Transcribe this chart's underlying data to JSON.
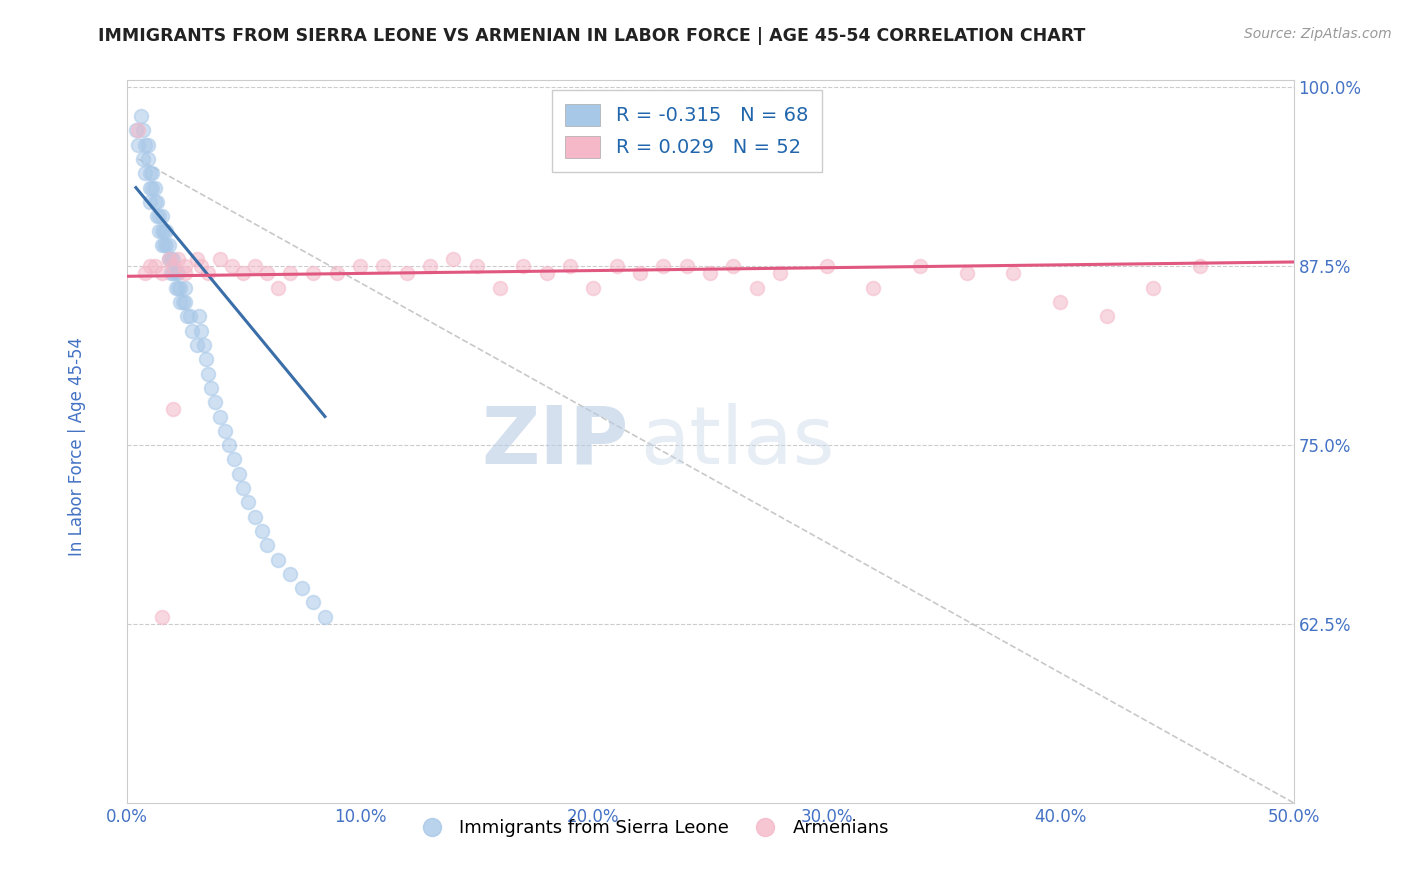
{
  "title": "IMMIGRANTS FROM SIERRA LEONE VS ARMENIAN IN LABOR FORCE | AGE 45-54 CORRELATION CHART",
  "source": "Source: ZipAtlas.com",
  "ylabel": "In Labor Force | Age 45-54",
  "legend_bottom": [
    "Immigrants from Sierra Leone",
    "Armenians"
  ],
  "blue_R": -0.315,
  "blue_N": 68,
  "pink_R": 0.029,
  "pink_N": 52,
  "blue_color": "#a8c8e8",
  "pink_color": "#f4b8c8",
  "blue_line_color": "#3a6ea8",
  "pink_line_color": "#e05880",
  "title_color": "#222222",
  "source_color": "#999999",
  "RN_color": "#2166ac",
  "axis_label_color": "#4472c4",
  "xmin": 0.0,
  "xmax": 0.5,
  "ymin": 0.5,
  "ymax": 1.005,
  "yticks": [
    0.625,
    0.75,
    0.875,
    1.0
  ],
  "ytick_labels": [
    "62.5%",
    "75.0%",
    "87.5%",
    "100.0%"
  ],
  "xticks": [
    0.0,
    0.1,
    0.2,
    0.3,
    0.4,
    0.5
  ],
  "xtick_labels": [
    "0.0%",
    "10.0%",
    "20.0%",
    "30.0%",
    "40.0%",
    "50.0%"
  ],
  "blue_scatter_x": [
    0.004,
    0.005,
    0.006,
    0.007,
    0.007,
    0.008,
    0.008,
    0.009,
    0.009,
    0.01,
    0.01,
    0.01,
    0.011,
    0.011,
    0.012,
    0.012,
    0.013,
    0.013,
    0.014,
    0.014,
    0.015,
    0.015,
    0.015,
    0.016,
    0.016,
    0.017,
    0.017,
    0.018,
    0.018,
    0.019,
    0.019,
    0.02,
    0.02,
    0.021,
    0.021,
    0.022,
    0.022,
    0.023,
    0.023,
    0.024,
    0.025,
    0.025,
    0.026,
    0.027,
    0.028,
    0.03,
    0.031,
    0.032,
    0.033,
    0.034,
    0.035,
    0.036,
    0.038,
    0.04,
    0.042,
    0.044,
    0.046,
    0.048,
    0.05,
    0.052,
    0.055,
    0.058,
    0.06,
    0.065,
    0.07,
    0.075,
    0.08,
    0.085
  ],
  "blue_scatter_y": [
    0.97,
    0.96,
    0.98,
    0.97,
    0.95,
    0.96,
    0.94,
    0.96,
    0.95,
    0.94,
    0.93,
    0.92,
    0.94,
    0.93,
    0.93,
    0.92,
    0.92,
    0.91,
    0.91,
    0.9,
    0.91,
    0.9,
    0.89,
    0.9,
    0.89,
    0.9,
    0.89,
    0.89,
    0.88,
    0.88,
    0.87,
    0.88,
    0.87,
    0.87,
    0.86,
    0.87,
    0.86,
    0.86,
    0.85,
    0.85,
    0.86,
    0.85,
    0.84,
    0.84,
    0.83,
    0.82,
    0.84,
    0.83,
    0.82,
    0.81,
    0.8,
    0.79,
    0.78,
    0.77,
    0.76,
    0.75,
    0.74,
    0.73,
    0.72,
    0.71,
    0.7,
    0.69,
    0.68,
    0.67,
    0.66,
    0.65,
    0.64,
    0.63
  ],
  "pink_scatter_x": [
    0.005,
    0.008,
    0.01,
    0.012,
    0.015,
    0.018,
    0.02,
    0.022,
    0.025,
    0.025,
    0.03,
    0.032,
    0.035,
    0.04,
    0.045,
    0.05,
    0.055,
    0.06,
    0.065,
    0.07,
    0.08,
    0.09,
    0.1,
    0.11,
    0.12,
    0.13,
    0.14,
    0.15,
    0.16,
    0.17,
    0.18,
    0.19,
    0.2,
    0.21,
    0.22,
    0.23,
    0.24,
    0.25,
    0.26,
    0.27,
    0.28,
    0.3,
    0.32,
    0.34,
    0.36,
    0.38,
    0.4,
    0.42,
    0.44,
    0.46,
    0.015,
    0.02
  ],
  "pink_scatter_y": [
    0.97,
    0.87,
    0.875,
    0.875,
    0.87,
    0.88,
    0.875,
    0.88,
    0.875,
    0.87,
    0.88,
    0.875,
    0.87,
    0.88,
    0.875,
    0.87,
    0.875,
    0.87,
    0.86,
    0.87,
    0.87,
    0.87,
    0.875,
    0.875,
    0.87,
    0.875,
    0.88,
    0.875,
    0.86,
    0.875,
    0.87,
    0.875,
    0.86,
    0.875,
    0.87,
    0.875,
    0.875,
    0.87,
    0.875,
    0.86,
    0.87,
    0.875,
    0.86,
    0.875,
    0.87,
    0.87,
    0.85,
    0.84,
    0.86,
    0.875,
    0.63,
    0.775
  ],
  "blue_line_x": [
    0.004,
    0.085
  ],
  "blue_line_y": [
    0.93,
    0.77
  ],
  "pink_line_x": [
    0.0,
    0.5
  ],
  "pink_line_y": [
    0.868,
    0.878
  ],
  "diag_line_x": [
    0.005,
    0.5
  ],
  "diag_line_y": [
    0.95,
    0.5
  ],
  "watermark_top": "ZIP",
  "watermark_bot": "atlas",
  "watermark_color": "#ccd8e8",
  "background_color": "#ffffff",
  "grid_color": "#cccccc",
  "marker_size": 100,
  "marker_alpha": 0.55
}
